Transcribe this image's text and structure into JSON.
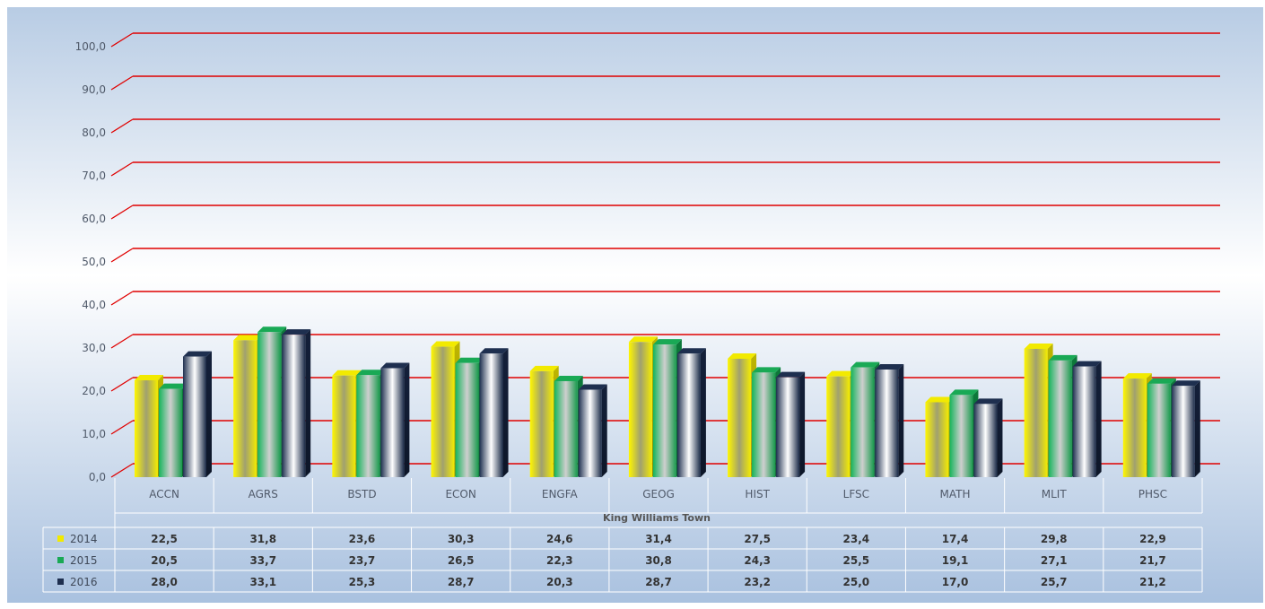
{
  "chart_data": {
    "type": "bar",
    "subtitle": "King Williams Town",
    "categories": [
      "ACCN",
      "AGRS",
      "BSTD",
      "ECON",
      "ENGFA",
      "GEOG",
      "HIST",
      "LFSC",
      "MATH",
      "MLIT",
      "PHSC"
    ],
    "series": [
      {
        "name": "2014",
        "color": "#f2ea00",
        "values": [
          22.5,
          31.8,
          23.6,
          30.3,
          24.6,
          31.4,
          27.5,
          23.4,
          17.4,
          29.8,
          22.9
        ]
      },
      {
        "name": "2015",
        "color": "#19a955",
        "values": [
          20.5,
          33.7,
          23.7,
          26.5,
          22.3,
          30.8,
          24.3,
          25.5,
          19.1,
          27.1,
          21.7
        ]
      },
      {
        "name": "2016",
        "color": "#1e2f4f",
        "values": [
          28.0,
          33.1,
          25.3,
          28.7,
          20.3,
          28.7,
          23.2,
          25.0,
          17.0,
          25.7,
          21.2
        ]
      }
    ],
    "series_labels": [
      "2014",
      "2015",
      "2016"
    ],
    "table": [
      [
        "22,5",
        "31,8",
        "23,6",
        "30,3",
        "24,6",
        "31,4",
        "27,5",
        "23,4",
        "17,4",
        "29,8",
        "22,9"
      ],
      [
        "20,5",
        "33,7",
        "23,7",
        "26,5",
        "22,3",
        "30,8",
        "24,3",
        "25,5",
        "19,1",
        "27,1",
        "21,7"
      ],
      [
        "28,0",
        "33,1",
        "25,3",
        "28,7",
        "20,3",
        "28,7",
        "23,2",
        "25,0",
        "17,0",
        "25,7",
        "21,2"
      ]
    ],
    "yticks": [
      "0,0",
      "10,0",
      "20,0",
      "30,0",
      "40,0",
      "50,0",
      "60,0",
      "70,0",
      "80,0",
      "90,0",
      "100,0"
    ],
    "ylim": [
      0,
      100
    ],
    "grid": true,
    "gridline_color": "#e00000",
    "legend": "data-table-left"
  }
}
